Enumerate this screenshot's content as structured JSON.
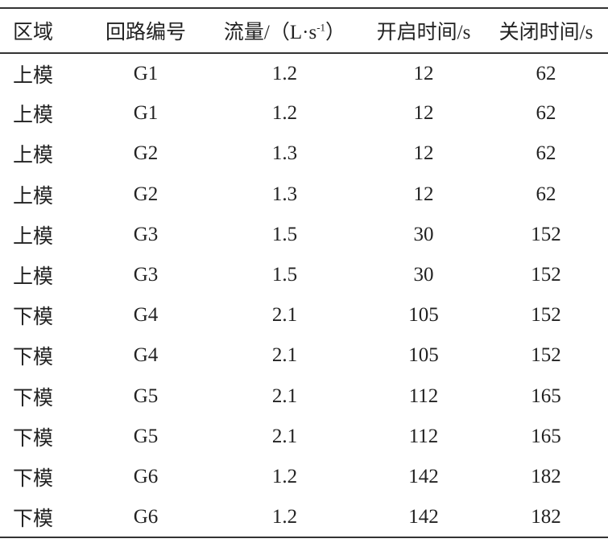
{
  "table": {
    "headers": [
      "区域",
      "回路编号",
      "流量/（L·s",
      "-1",
      "）",
      "开启时间/s",
      "关闭时间/s"
    ],
    "rows": [
      [
        "上模",
        "G1",
        "1.2",
        "12",
        "62"
      ],
      [
        "上模",
        "G1",
        "1.2",
        "12",
        "62"
      ],
      [
        "上模",
        "G2",
        "1.3",
        "12",
        "62"
      ],
      [
        "上模",
        "G2",
        "1.3",
        "12",
        "62"
      ],
      [
        "上模",
        "G3",
        "1.5",
        "30",
        "152"
      ],
      [
        "上模",
        "G3",
        "1.5",
        "30",
        "152"
      ],
      [
        "下模",
        "G4",
        "2.1",
        "105",
        "152"
      ],
      [
        "下模",
        "G4",
        "2.1",
        "105",
        "152"
      ],
      [
        "下模",
        "G5",
        "2.1",
        "112",
        "165"
      ],
      [
        "下模",
        "G5",
        "2.1",
        "112",
        "165"
      ],
      [
        "下模",
        "G6",
        "1.2",
        "142",
        "182"
      ],
      [
        "下模",
        "G6",
        "1.2",
        "142",
        "182"
      ]
    ]
  }
}
